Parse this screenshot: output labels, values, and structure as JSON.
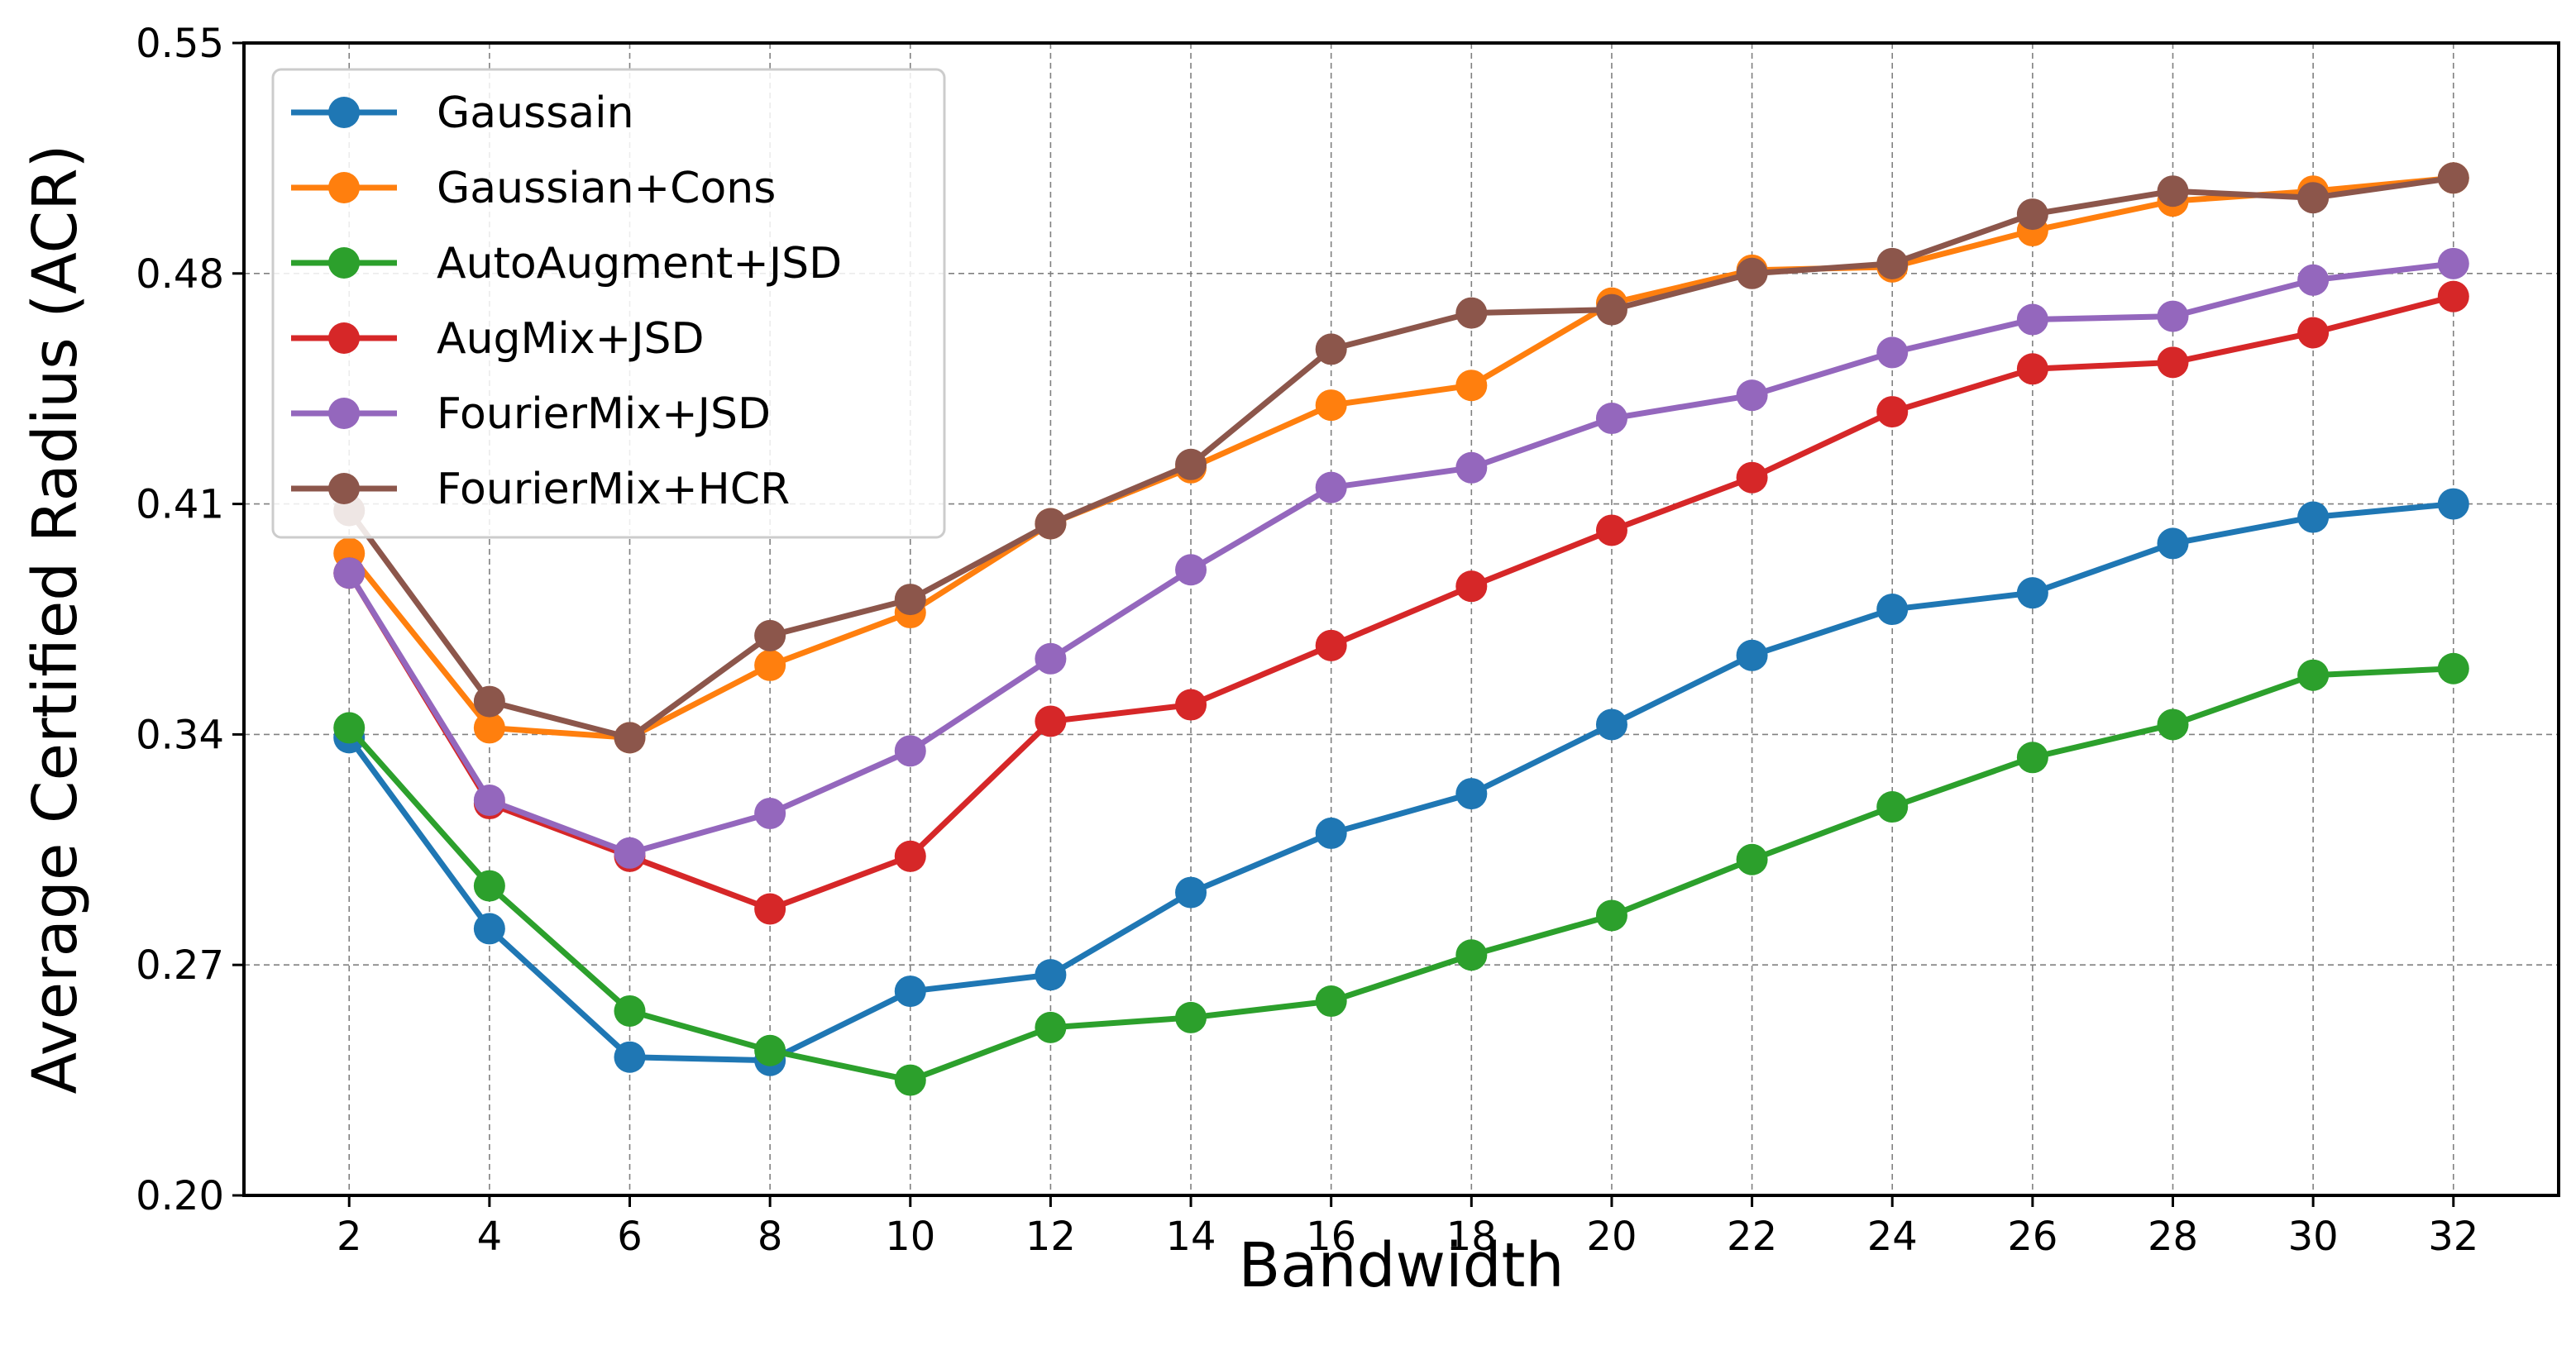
{
  "chart_data": {
    "type": "line",
    "title": "",
    "xlabel": "Bandwidth",
    "ylabel": "Average Certified Radius (ACR)",
    "x": [
      2,
      4,
      6,
      8,
      10,
      12,
      14,
      16,
      18,
      20,
      22,
      24,
      26,
      28,
      30,
      32
    ],
    "xticks": [
      "2",
      "4",
      "6",
      "8",
      "10",
      "12",
      "14",
      "16",
      "18",
      "20",
      "22",
      "24",
      "26",
      "28",
      "30",
      "32"
    ],
    "yticks": [
      "0.20",
      "0.27",
      "0.34",
      "0.41",
      "0.48",
      "0.55"
    ],
    "ylim": [
      0.2,
      0.55
    ],
    "grid": true,
    "legend_position": "top-left",
    "series": [
      {
        "name": "Gaussain",
        "color": "#1f77b4",
        "values": [
          0.339,
          0.281,
          0.242,
          0.241,
          0.262,
          0.267,
          0.292,
          0.31,
          0.322,
          0.343,
          0.364,
          0.378,
          0.383,
          0.398,
          0.406,
          0.41
        ]
      },
      {
        "name": "Gaussian+Cons",
        "color": "#ff7f0e",
        "values": [
          0.395,
          0.342,
          0.339,
          0.361,
          0.377,
          0.404,
          0.421,
          0.44,
          0.446,
          0.471,
          0.481,
          0.482,
          0.493,
          0.502,
          0.505,
          0.509
        ]
      },
      {
        "name": "AutoAugment+JSD",
        "color": "#2ca02c",
        "values": [
          0.342,
          0.294,
          0.256,
          0.244,
          0.235,
          0.251,
          0.254,
          0.259,
          0.273,
          0.285,
          0.302,
          0.318,
          0.333,
          0.343,
          0.358,
          0.36
        ]
      },
      {
        "name": "AugMix+JSD",
        "color": "#d62728",
        "values": [
          0.389,
          0.319,
          0.303,
          0.287,
          0.303,
          0.344,
          0.349,
          0.367,
          0.385,
          0.402,
          0.418,
          0.438,
          0.451,
          0.453,
          0.462,
          0.473
        ]
      },
      {
        "name": "FourierMix+JSD",
        "color": "#9467bd",
        "values": [
          0.389,
          0.32,
          0.304,
          0.316,
          0.335,
          0.363,
          0.39,
          0.415,
          0.421,
          0.436,
          0.443,
          0.456,
          0.466,
          0.467,
          0.478,
          0.483
        ]
      },
      {
        "name": "FourierMix+HCR",
        "color": "#8c564b",
        "values": [
          0.408,
          0.35,
          0.339,
          0.37,
          0.381,
          0.404,
          0.422,
          0.457,
          0.468,
          0.469,
          0.48,
          0.483,
          0.498,
          0.505,
          0.503,
          0.509
        ]
      }
    ]
  }
}
